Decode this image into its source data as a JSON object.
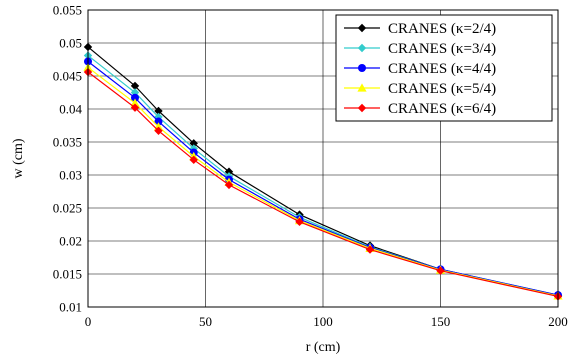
{
  "chart_data": {
    "type": "line",
    "xlabel": "r (cm)",
    "ylabel": "w (cm)",
    "xlim": [
      0,
      200
    ],
    "ylim": [
      0.01,
      0.055
    ],
    "x_ticks": [
      "0",
      "50",
      "100",
      "150",
      "200"
    ],
    "y_ticks": [
      "0.01",
      "0.015",
      "0.02",
      "0.025",
      "0.03",
      "0.035",
      "0.04",
      "0.045",
      "0.05",
      "0.055"
    ],
    "grid": true,
    "legend_position": "top-right",
    "x": [
      0,
      20,
      30,
      45,
      60,
      90,
      120,
      150,
      200
    ],
    "series": [
      {
        "name": "CRANES (κ=2/4)",
        "color": "#000000",
        "marker": "diamond",
        "values": [
          0.0494,
          0.0435,
          0.0397,
          0.0348,
          0.0305,
          0.024,
          0.0193,
          0.0157,
          0.0117
        ]
      },
      {
        "name": "CRANES (κ=3/4)",
        "color": "#33cccc",
        "marker": "diamond",
        "values": [
          0.0481,
          0.0425,
          0.0388,
          0.034,
          0.0298,
          0.0236,
          0.0191,
          0.0157,
          0.0118
        ]
      },
      {
        "name": "CRANES (κ=4/4)",
        "color": "#0000ff",
        "marker": "circle",
        "values": [
          0.0472,
          0.0417,
          0.0381,
          0.0334,
          0.0293,
          0.0233,
          0.019,
          0.0157,
          0.0118
        ]
      },
      {
        "name": "CRANES (κ=5/4)",
        "color": "#ffff00",
        "marker": "triangle",
        "values": [
          0.0463,
          0.0409,
          0.0373,
          0.0328,
          0.0289,
          0.0231,
          0.0189,
          0.0156,
          0.0117
        ]
      },
      {
        "name": "CRANES (κ=6/4)",
        "color": "#ff0000",
        "marker": "diamond",
        "values": [
          0.0456,
          0.0402,
          0.0367,
          0.0323,
          0.0285,
          0.0229,
          0.0187,
          0.0155,
          0.0116
        ]
      }
    ]
  }
}
